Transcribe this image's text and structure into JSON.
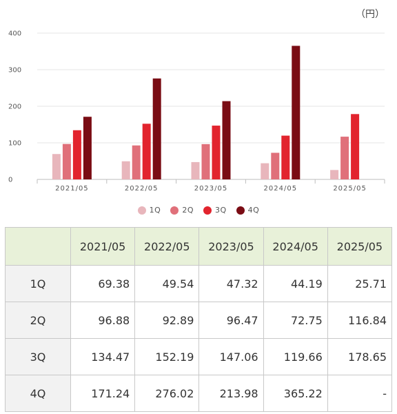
{
  "unit_label": "（円）",
  "colors": {
    "1Q": "#e8b6bc",
    "2Q": "#e0707a",
    "3Q": "#e2242e",
    "4Q": "#7a0c14",
    "gridline": "#e4e4e4",
    "table_header_bg": "#e8f1d9",
    "row_header_bg": "#f2f2f2"
  },
  "chart_data": {
    "type": "bar",
    "categories": [
      "2021/05",
      "2022/05",
      "2023/05",
      "2024/05",
      "2025/05"
    ],
    "series": [
      {
        "name": "1Q",
        "values": [
          69.38,
          49.54,
          47.32,
          44.19,
          25.71
        ]
      },
      {
        "name": "2Q",
        "values": [
          96.88,
          92.89,
          96.47,
          72.75,
          116.84
        ]
      },
      {
        "name": "3Q",
        "values": [
          134.47,
          152.19,
          147.06,
          119.66,
          178.65
        ]
      },
      {
        "name": "4Q",
        "values": [
          171.24,
          276.02,
          213.98,
          365.22,
          null
        ]
      }
    ],
    "ylim": [
      0,
      400
    ],
    "yticks": [
      0,
      100,
      200,
      300,
      400
    ],
    "grid": true,
    "legend_position": "bottom-center"
  },
  "table": {
    "corner": "",
    "columns": [
      "2021/05",
      "2022/05",
      "2023/05",
      "2024/05",
      "2025/05"
    ],
    "rows": [
      {
        "label": "1Q",
        "cells": [
          "69.38",
          "49.54",
          "47.32",
          "44.19",
          "25.71"
        ]
      },
      {
        "label": "2Q",
        "cells": [
          "96.88",
          "92.89",
          "96.47",
          "72.75",
          "116.84"
        ]
      },
      {
        "label": "3Q",
        "cells": [
          "134.47",
          "152.19",
          "147.06",
          "119.66",
          "178.65"
        ]
      },
      {
        "label": "4Q",
        "cells": [
          "171.24",
          "276.02",
          "213.98",
          "365.22",
          "-"
        ]
      }
    ]
  }
}
